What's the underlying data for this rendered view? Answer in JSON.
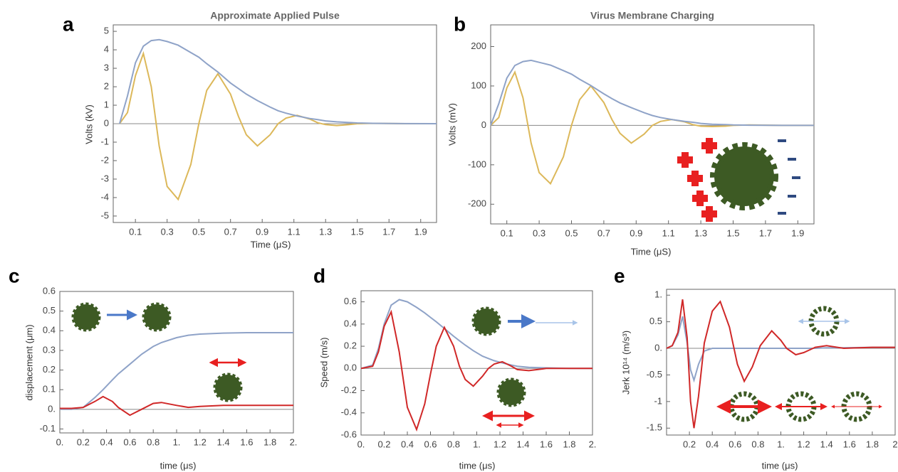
{
  "chart_data": [
    {
      "type": "line",
      "label": "a",
      "title": "Approximate Applied Pulse",
      "x_label": "Time (μS)",
      "y_label": "Volts (kV)",
      "xlim": [
        -0.04,
        2.0
      ],
      "ylim": [
        -5.35,
        5.35
      ],
      "xticks": [
        0.1,
        0.3,
        0.5,
        0.7,
        0.9,
        1.1,
        1.3,
        1.5,
        1.7,
        1.9
      ],
      "yticks": [
        -5,
        -4,
        -3,
        -2,
        -1,
        0,
        1,
        2,
        3,
        4,
        5
      ],
      "x": [
        0,
        0.05,
        0.1,
        0.15,
        0.2,
        0.25,
        0.3,
        0.37,
        0.45,
        0.5,
        0.55,
        0.62,
        0.7,
        0.75,
        0.8,
        0.87,
        0.95,
        1.0,
        1.05,
        1.12,
        1.2,
        1.25,
        1.3,
        1.37,
        1.45,
        1.5,
        1.6,
        1.8,
        2.0
      ],
      "series": [
        {
          "color": "#dcb85a",
          "values": [
            0,
            0.6,
            2.6,
            3.8,
            2.0,
            -1.2,
            -3.4,
            -4.1,
            -2.2,
            0,
            1.8,
            2.7,
            1.6,
            0.4,
            -0.6,
            -1.2,
            -0.6,
            0,
            0.3,
            0.45,
            0.25,
            0.05,
            -0.05,
            -0.1,
            -0.05,
            0,
            0.02,
            0,
            0
          ]
        },
        {
          "color": "#8fa3c8",
          "values": [
            0,
            1.5,
            3.3,
            4.2,
            4.5,
            4.55,
            4.45,
            4.25,
            3.85,
            3.6,
            3.25,
            2.8,
            2.2,
            1.9,
            1.6,
            1.25,
            0.9,
            0.7,
            0.57,
            0.42,
            0.28,
            0.22,
            0.15,
            0.1,
            0.06,
            0.04,
            0.02,
            0.005,
            0
          ]
        }
      ]
    },
    {
      "type": "line",
      "label": "b",
      "title": "Virus Membrane Charging",
      "x_label": "Time (μS)",
      "y_label": "Volts (mV)",
      "xlim": [
        0,
        2.0
      ],
      "ylim": [
        -250,
        255
      ],
      "xticks": [
        0.1,
        0.3,
        0.5,
        0.7,
        0.9,
        1.1,
        1.3,
        1.5,
        1.7,
        1.9
      ],
      "yticks": [
        -200,
        -100,
        0,
        100,
        200
      ],
      "x": [
        0,
        0.05,
        0.1,
        0.15,
        0.2,
        0.25,
        0.3,
        0.37,
        0.45,
        0.5,
        0.55,
        0.62,
        0.7,
        0.75,
        0.8,
        0.87,
        0.95,
        1.0,
        1.05,
        1.12,
        1.2,
        1.25,
        1.3,
        1.37,
        1.45,
        1.5,
        1.6,
        1.8,
        2.0
      ],
      "series": [
        {
          "color": "#dcb85a",
          "values": [
            0,
            20,
            95,
            135,
            70,
            -45,
            -120,
            -148,
            -80,
            0,
            65,
            100,
            58,
            15,
            -20,
            -45,
            -22,
            0,
            10,
            15,
            9,
            2,
            -2,
            -3,
            -2,
            0,
            1,
            0,
            0
          ]
        },
        {
          "color": "#8fa3c8",
          "values": [
            0,
            55,
            120,
            152,
            162,
            165,
            160,
            153,
            139,
            130,
            117,
            101,
            80,
            68,
            57,
            45,
            32,
            25,
            20,
            15,
            10,
            8,
            5,
            3,
            2,
            1,
            0.5,
            0,
            0
          ]
        }
      ]
    },
    {
      "type": "line",
      "label": "c",
      "x_label": "time (μs)",
      "y_label": "displacement (μm)",
      "xlim": [
        0,
        2
      ],
      "ylim": [
        -0.12,
        0.6
      ],
      "xticks": [
        {
          "value": 0,
          "label": "0."
        },
        0.2,
        0.4,
        0.6,
        0.8,
        {
          "value": 1,
          "label": "1."
        },
        1.2,
        1.4,
        1.6,
        1.8,
        {
          "value": 2,
          "label": "2."
        }
      ],
      "yticks": [
        -0.1,
        {
          "value": 0,
          "label": "0."
        },
        0.1,
        0.2,
        0.3,
        0.4,
        0.5,
        0.6
      ],
      "x": [
        0,
        0.1,
        0.2,
        0.3,
        0.37,
        0.45,
        0.5,
        0.6,
        0.7,
        0.8,
        0.87,
        1.0,
        1.1,
        1.2,
        1.4,
        1.6,
        1.8,
        2.0
      ],
      "series": [
        {
          "color": "#8fa3c8",
          "values": [
            0,
            0,
            0.01,
            0.06,
            0.1,
            0.15,
            0.18,
            0.23,
            0.28,
            0.32,
            0.34,
            0.365,
            0.377,
            0.383,
            0.388,
            0.39,
            0.39,
            0.39
          ]
        },
        {
          "color": "#d02828",
          "values": [
            0.005,
            0.005,
            0.01,
            0.04,
            0.065,
            0.04,
            0.01,
            -0.03,
            0,
            0.03,
            0.035,
            0.02,
            0.01,
            0.015,
            0.02,
            0.02,
            0.02,
            0.02
          ]
        }
      ]
    },
    {
      "type": "line",
      "label": "d",
      "x_label": "time (μs)",
      "y_label": "Speed (m/s)",
      "xlim": [
        0,
        2
      ],
      "ylim": [
        -0.6,
        0.7
      ],
      "xticks": [
        {
          "value": 0,
          "label": "0."
        },
        0.2,
        0.4,
        0.6,
        0.8,
        {
          "value": 1,
          "label": "1."
        },
        1.2,
        1.4,
        1.6,
        1.8,
        {
          "value": 2,
          "label": "2."
        }
      ],
      "yticks": [
        -0.6,
        -0.4,
        -0.2,
        {
          "value": 0,
          "label": "0.0"
        },
        0.2,
        0.4,
        0.6
      ],
      "x": [
        0,
        0.1,
        0.15,
        0.2,
        0.26,
        0.33,
        0.4,
        0.48,
        0.55,
        0.6,
        0.65,
        0.72,
        0.8,
        0.85,
        0.9,
        0.97,
        1.05,
        1.1,
        1.15,
        1.22,
        1.3,
        1.35,
        1.45,
        1.6,
        1.8,
        2.0
      ],
      "series": [
        {
          "color": "#8fa3c8",
          "values": [
            0,
            0.03,
            0.18,
            0.4,
            0.57,
            0.62,
            0.6,
            0.55,
            0.5,
            0.46,
            0.42,
            0.36,
            0.29,
            0.25,
            0.21,
            0.16,
            0.11,
            0.09,
            0.07,
            0.05,
            0.03,
            0.02,
            0.01,
            0.005,
            0,
            0
          ]
        },
        {
          "color": "#d02828",
          "values": [
            0,
            0.02,
            0.15,
            0.38,
            0.51,
            0.15,
            -0.35,
            -0.55,
            -0.32,
            -0.05,
            0.2,
            0.37,
            0.2,
            0.02,
            -0.1,
            -0.16,
            -0.07,
            0,
            0.04,
            0.06,
            0.02,
            -0.01,
            -0.02,
            0,
            0,
            0
          ]
        }
      ]
    },
    {
      "type": "line",
      "label": "e",
      "x_label": "time (μs)",
      "y_label": "Jerk 10¹⁴ (m/s³)",
      "xlim": [
        0,
        2
      ],
      "ylim": [
        -1.63,
        1.11
      ],
      "xticks": [
        0.2,
        0.4,
        0.6,
        0.8,
        {
          "value": 1,
          "label": "1."
        },
        1.2,
        1.4,
        1.6,
        1.8,
        2
      ],
      "yticks": [
        -1.5,
        -1,
        -0.5,
        {
          "value": 0,
          "label": "0."
        },
        0.5,
        {
          "value": 1,
          "label": "1."
        }
      ],
      "x": [
        0,
        0.05,
        0.1,
        0.14,
        0.18,
        0.21,
        0.24,
        0.28,
        0.33,
        0.4,
        0.47,
        0.55,
        0.62,
        0.68,
        0.75,
        0.82,
        0.92,
        1.0,
        1.05,
        1.13,
        1.2,
        1.3,
        1.4,
        1.55,
        1.8,
        2.0
      ],
      "series": [
        {
          "color": "#8fa3c8",
          "values": [
            0,
            0.05,
            0.25,
            0.6,
            0.1,
            -0.4,
            -0.6,
            -0.3,
            -0.05,
            0,
            0,
            0,
            0,
            0,
            0,
            0,
            0,
            0,
            0,
            0,
            0,
            0,
            0.01,
            0.01,
            0.02,
            0.02
          ]
        },
        {
          "color": "#d02828",
          "values": [
            0,
            0.05,
            0.3,
            0.92,
            0.2,
            -1.0,
            -1.5,
            -0.9,
            0.1,
            0.7,
            0.88,
            0.4,
            -0.3,
            -0.62,
            -0.35,
            0.05,
            0.33,
            0.15,
            0,
            -0.12,
            -0.08,
            0.02,
            0.05,
            0,
            0.02,
            0.02
          ]
        }
      ]
    }
  ]
}
